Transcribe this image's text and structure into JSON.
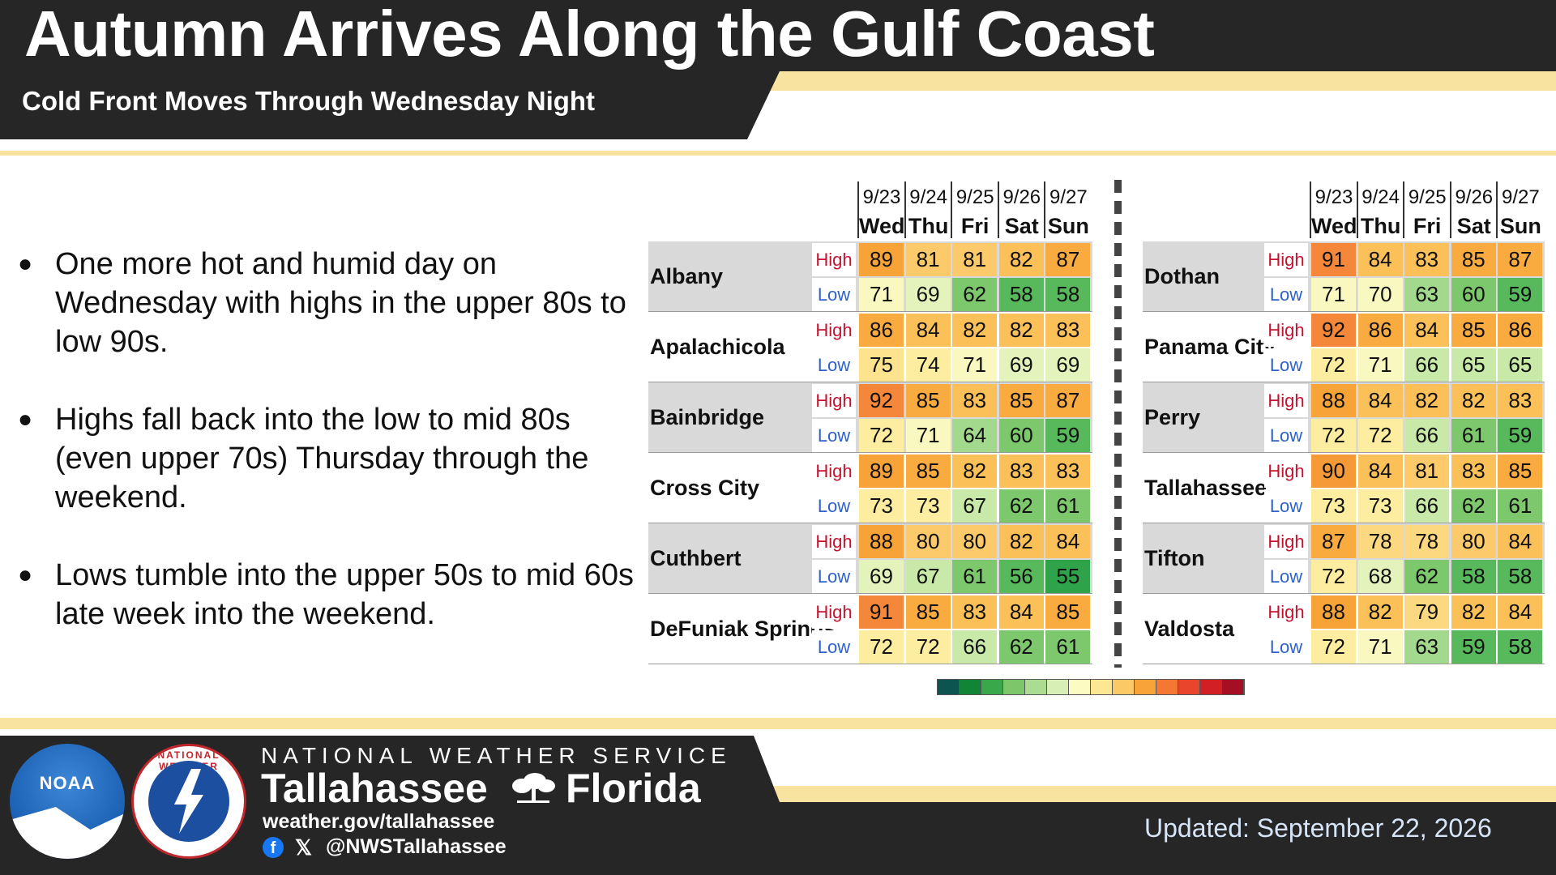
{
  "header": {
    "title": "Autumn Arrives Along the Gulf Coast",
    "subtitle": "Cold Front Moves Through Wednesday Night"
  },
  "bullets": [
    "One more hot and humid day on Wednesday with highs in the upper 80s to low 90s.",
    "Highs fall back into the low to mid 80s (even upper 70s) Thursday through the weekend.",
    "Lows tumble into the upper 50s to mid 60s late week into the weekend."
  ],
  "bullet_symbol": "●",
  "days": [
    {
      "date": "9/23",
      "day": "Wed"
    },
    {
      "date": "9/24",
      "day": "Thu"
    },
    {
      "date": "9/25",
      "day": "Fri"
    },
    {
      "date": "9/26",
      "day": "Sat"
    },
    {
      "date": "9/27",
      "day": "Sun"
    }
  ],
  "row_labels": {
    "high": "High",
    "low": "Low"
  },
  "label_colors": {
    "high": "#c4122f",
    "low": "#2f62c9"
  },
  "left_table": [
    {
      "city": "Albany",
      "high": [
        89,
        81,
        81,
        82,
        87
      ],
      "low": [
        71,
        69,
        62,
        58,
        58
      ]
    },
    {
      "city": "Apalachicola",
      "high": [
        86,
        84,
        82,
        82,
        83
      ],
      "low": [
        75,
        74,
        71,
        69,
        69
      ]
    },
    {
      "city": "Bainbridge",
      "high": [
        92,
        85,
        83,
        85,
        87
      ],
      "low": [
        72,
        71,
        64,
        60,
        59
      ]
    },
    {
      "city": "Cross City",
      "high": [
        89,
        85,
        82,
        83,
        83
      ],
      "low": [
        73,
        73,
        67,
        62,
        61
      ]
    },
    {
      "city": "Cuthbert",
      "high": [
        88,
        80,
        80,
        82,
        84
      ],
      "low": [
        69,
        67,
        61,
        56,
        55
      ]
    },
    {
      "city": "DeFuniak Springs",
      "high": [
        91,
        85,
        83,
        84,
        85
      ],
      "low": [
        72,
        72,
        66,
        62,
        61
      ]
    }
  ],
  "right_table": [
    {
      "city": "Dothan",
      "high": [
        91,
        84,
        83,
        85,
        87
      ],
      "low": [
        71,
        70,
        63,
        60,
        59
      ]
    },
    {
      "city": "Panama City",
      "high": [
        92,
        86,
        84,
        85,
        86
      ],
      "low": [
        72,
        71,
        66,
        65,
        65
      ]
    },
    {
      "city": "Perry",
      "high": [
        88,
        84,
        82,
        82,
        83
      ],
      "low": [
        72,
        72,
        66,
        61,
        59
      ]
    },
    {
      "city": "Tallahassee",
      "high": [
        90,
        84,
        81,
        83,
        85
      ],
      "low": [
        73,
        73,
        66,
        62,
        61
      ]
    },
    {
      "city": "Tifton",
      "high": [
        87,
        78,
        78,
        80,
        84
      ],
      "low": [
        72,
        68,
        62,
        58,
        58
      ]
    },
    {
      "city": "Valdosta",
      "high": [
        88,
        82,
        79,
        82,
        84
      ],
      "low": [
        72,
        71,
        63,
        59,
        58
      ]
    }
  ],
  "legend_colors": [
    "#0b5450",
    "#118535",
    "#38a84a",
    "#7dc66a",
    "#aadc92",
    "#d7efb4",
    "#fbfbc2",
    "#fde793",
    "#fbc965",
    "#f8a23a",
    "#f37834",
    "#e8452c",
    "#d21f26",
    "#a50f24"
  ],
  "footer": {
    "agency": "NATIONAL WEATHER SERVICE",
    "office_city": "Tallahassee",
    "office_state": "Florida",
    "website": "weather.gov/tallahassee",
    "social": "@NWSTallahassee",
    "updated": "Updated: September 22, 2026",
    "noaa_logo_text": "NOAA",
    "nws_logo_text": "NATIONAL WEATHER SERVICE"
  }
}
